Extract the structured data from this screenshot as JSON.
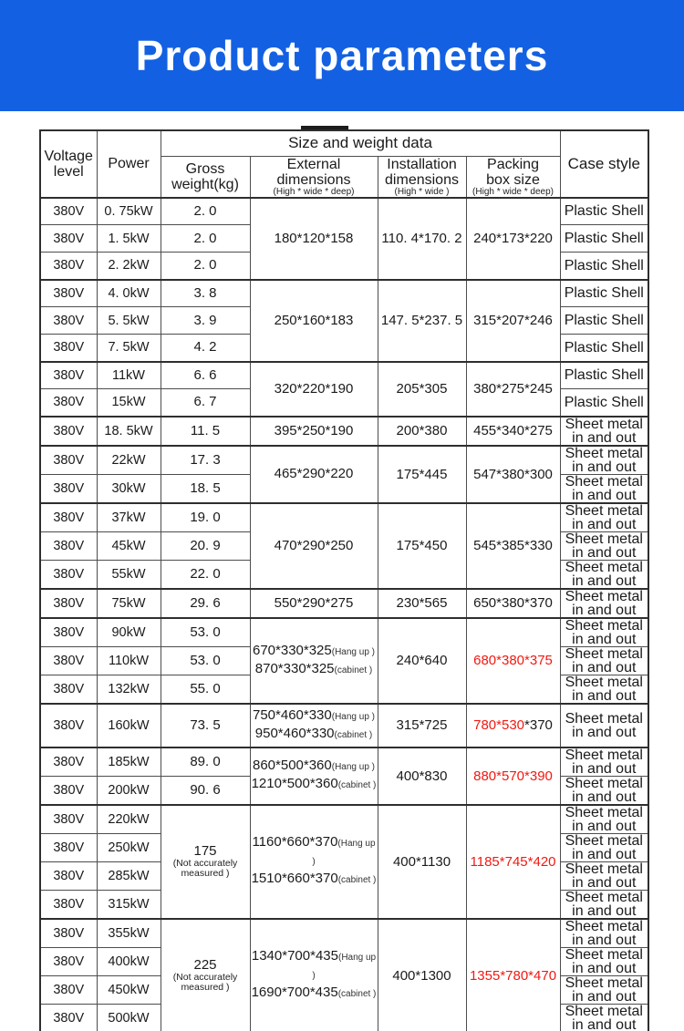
{
  "title": "Product parameters",
  "colors": {
    "banner_blue": "#1361e2",
    "red_text": "#f01911",
    "table_border": "#2e2e2e"
  },
  "table": {
    "header": {
      "voltage_line1": "Voltage",
      "voltage_line2": "level",
      "power": "Power",
      "size_weight": "Size and weight data",
      "gross_line1": "Gross",
      "gross_line2": "weight(kg)",
      "external_line1": "External",
      "external_line2": "dimensions",
      "external_note": "(High * wide * deep)",
      "install_line1": "Installation",
      "install_line2": "dimensions",
      "install_note": "(High * wide )",
      "packing_line1": "Packing",
      "packing_line2": "box size",
      "packing_note": "(High * wide * deep)",
      "case_style": "Case style"
    },
    "rows": [
      {
        "group_start": true,
        "voltage": "380V",
        "power": "0. 75kW",
        "weight": {
          "text": "2. 0"
        },
        "external": {
          "span": 3,
          "lines": [
            {
              "dims": "180*120*158"
            }
          ]
        },
        "installation": {
          "span": 3,
          "text": "110. 4*170. 2"
        },
        "packing": {
          "span": 3,
          "parts": [
            {
              "text": "240*173*220"
            }
          ]
        },
        "case_style": [
          "Plastic Shell"
        ]
      },
      {
        "voltage": "380V",
        "power": "1. 5kW",
        "weight": {
          "text": "2. 0"
        },
        "case_style": [
          "Plastic Shell"
        ]
      },
      {
        "voltage": "380V",
        "power": "2. 2kW",
        "weight": {
          "text": "2. 0"
        },
        "case_style": [
          "Plastic Shell"
        ]
      },
      {
        "group_start": true,
        "voltage": "380V",
        "power": "4. 0kW",
        "weight": {
          "text": "3. 8"
        },
        "external": {
          "span": 3,
          "lines": [
            {
              "dims": "250*160*183"
            }
          ]
        },
        "installation": {
          "span": 3,
          "text": "147. 5*237. 5"
        },
        "packing": {
          "span": 3,
          "parts": [
            {
              "text": "315*207*246"
            }
          ]
        },
        "case_style": [
          "Plastic Shell"
        ]
      },
      {
        "voltage": "380V",
        "power": "5. 5kW",
        "weight": {
          "text": "3. 9"
        },
        "case_style": [
          "Plastic Shell"
        ]
      },
      {
        "voltage": "380V",
        "power": "7. 5kW",
        "weight": {
          "text": "4. 2"
        },
        "case_style": [
          "Plastic Shell"
        ]
      },
      {
        "group_start": true,
        "voltage": "380V",
        "power": "11kW",
        "weight": {
          "text": "6. 6"
        },
        "external": {
          "span": 2,
          "lines": [
            {
              "dims": "320*220*190"
            }
          ]
        },
        "installation": {
          "span": 2,
          "text": "205*305"
        },
        "packing": {
          "span": 2,
          "parts": [
            {
              "text": "380*275*245"
            }
          ]
        },
        "case_style": [
          "Plastic Shell"
        ]
      },
      {
        "voltage": "380V",
        "power": "15kW",
        "weight": {
          "text": "6. 7"
        },
        "case_style": [
          "Plastic Shell"
        ]
      },
      {
        "group_start": true,
        "voltage": "380V",
        "power": "18. 5kW",
        "weight": {
          "text": "11. 5"
        },
        "external": {
          "lines": [
            {
              "dims": "395*250*190"
            }
          ]
        },
        "installation": {
          "text": "200*380"
        },
        "packing": {
          "parts": [
            {
              "text": "455*340*275"
            }
          ]
        },
        "case_style": [
          "Sheet metal",
          "in and out"
        ]
      },
      {
        "group_start": true,
        "voltage": "380V",
        "power": "22kW",
        "weight": {
          "text": "17. 3"
        },
        "external": {
          "span": 2,
          "lines": [
            {
              "dims": "465*290*220"
            }
          ]
        },
        "installation": {
          "span": 2,
          "text": "175*445"
        },
        "packing": {
          "span": 2,
          "parts": [
            {
              "text": "547*380*300"
            }
          ]
        },
        "case_style": [
          "Sheet metal",
          "in and out"
        ]
      },
      {
        "voltage": "380V",
        "power": "30kW",
        "weight": {
          "text": "18. 5"
        },
        "case_style": [
          "Sheet metal",
          "in and out"
        ]
      },
      {
        "group_start": true,
        "voltage": "380V",
        "power": "37kW",
        "weight": {
          "text": "19. 0"
        },
        "external": {
          "span": 3,
          "lines": [
            {
              "dims": "470*290*250"
            }
          ]
        },
        "installation": {
          "span": 3,
          "text": "175*450"
        },
        "packing": {
          "span": 3,
          "parts": [
            {
              "text": "545*385*330"
            }
          ]
        },
        "case_style": [
          "Sheet metal",
          "in and out"
        ]
      },
      {
        "voltage": "380V",
        "power": "45kW",
        "weight": {
          "text": "20. 9"
        },
        "case_style": [
          "Sheet metal",
          "in and out"
        ]
      },
      {
        "voltage": "380V",
        "power": "55kW",
        "weight": {
          "text": "22. 0"
        },
        "case_style": [
          "Sheet metal",
          "in and out"
        ]
      },
      {
        "group_start": true,
        "voltage": "380V",
        "power": "75kW",
        "weight": {
          "text": "29. 6"
        },
        "external": {
          "lines": [
            {
              "dims": "550*290*275"
            }
          ]
        },
        "installation": {
          "text": "230*565"
        },
        "packing": {
          "parts": [
            {
              "text": "650*380*370"
            }
          ]
        },
        "case_style": [
          "Sheet metal",
          "in and out"
        ]
      },
      {
        "group_start": true,
        "voltage": "380V",
        "power": "90kW",
        "weight": {
          "text": "53. 0"
        },
        "external": {
          "span": 3,
          "lines": [
            {
              "dims": "670*330*325",
              "label": "(Hang up )"
            },
            {
              "dims": "870*330*325",
              "label": "(cabinet )"
            }
          ]
        },
        "installation": {
          "span": 3,
          "text": "240*640"
        },
        "packing": {
          "span": 3,
          "parts": [
            {
              "text": "680*380*375",
              "red": true
            }
          ]
        },
        "case_style": [
          "Sheet metal",
          "in and out"
        ]
      },
      {
        "voltage": "380V",
        "power": "110kW",
        "weight": {
          "text": "53. 0"
        },
        "case_style": [
          "Sheet metal",
          "in and out"
        ]
      },
      {
        "voltage": "380V",
        "power": "132kW",
        "weight": {
          "text": "55. 0"
        },
        "case_style": [
          "Sheet metal",
          "in and out"
        ]
      },
      {
        "group_start": true,
        "tall": true,
        "voltage": "380V",
        "power": "160kW",
        "weight": {
          "text": "73. 5"
        },
        "external": {
          "lines": [
            {
              "dims": "750*460*330",
              "label": "(Hang up )"
            },
            {
              "dims": "950*460*330",
              "label": "(cabinet )"
            }
          ]
        },
        "installation": {
          "text": "315*725"
        },
        "packing": {
          "parts": [
            {
              "text": "780*530",
              "red": true
            },
            {
              "text": "*370"
            }
          ]
        },
        "case_style": [
          "Sheet metal",
          "in and out"
        ]
      },
      {
        "group_start": true,
        "voltage": "380V",
        "power": "185kW",
        "weight": {
          "text": "89. 0"
        },
        "external": {
          "span": 2,
          "lines": [
            {
              "dims": "860*500*360",
              "label": "(Hang up )"
            },
            {
              "dims": "1210*500*360",
              "label": "(cabinet )"
            }
          ]
        },
        "installation": {
          "span": 2,
          "text": "400*830"
        },
        "packing": {
          "span": 2,
          "parts": [
            {
              "text": "880*570*390",
              "red": true
            }
          ]
        },
        "case_style": [
          "Sheet metal",
          "in and out"
        ]
      },
      {
        "voltage": "380V",
        "power": "200kW",
        "weight": {
          "text": "90. 6"
        },
        "case_style": [
          "Sheet metal",
          "in and out"
        ]
      },
      {
        "group_start": true,
        "voltage": "380V",
        "power": "220kW",
        "weight": {
          "span": 4,
          "text": "175",
          "note": "(Not accurately measured )"
        },
        "external": {
          "span": 4,
          "lines": [
            {
              "dims": "1160*660*370",
              "label": "(Hang up )"
            },
            {
              "dims": "1510*660*370",
              "label": "(cabinet )"
            }
          ]
        },
        "installation": {
          "span": 4,
          "text": "400*1130"
        },
        "packing": {
          "span": 4,
          "parts": [
            {
              "text": "1185*745*420",
              "red": true
            }
          ]
        },
        "case_style": [
          "Sheet metal",
          "in and out"
        ]
      },
      {
        "voltage": "380V",
        "power": "250kW",
        "case_style": [
          "Sheet metal",
          "in and out"
        ]
      },
      {
        "voltage": "380V",
        "power": "285kW",
        "case_style": [
          "Sheet metal",
          "in and out"
        ]
      },
      {
        "voltage": "380V",
        "power": "315kW",
        "case_style": [
          "Sheet metal",
          "in and out"
        ]
      },
      {
        "group_start": true,
        "voltage": "380V",
        "power": "355kW",
        "weight": {
          "span": 4,
          "text": "225",
          "note": "(Not accurately measured )"
        },
        "external": {
          "span": 4,
          "lines": [
            {
              "dims": "1340*700*435",
              "label": "(Hang up )"
            },
            {
              "dims": "1690*700*435",
              "label": "(cabinet )"
            }
          ]
        },
        "installation": {
          "span": 4,
          "text": "400*1300"
        },
        "packing": {
          "span": 4,
          "parts": [
            {
              "text": "1355*780*470",
              "red": true
            }
          ]
        },
        "case_style": [
          "Sheet metal",
          "in and out"
        ]
      },
      {
        "voltage": "380V",
        "power": "400kW",
        "case_style": [
          "Sheet metal",
          "in and out"
        ]
      },
      {
        "voltage": "380V",
        "power": "450kW",
        "case_style": [
          "Sheet metal",
          "in and out"
        ]
      },
      {
        "voltage": "380V",
        "power": "500kW",
        "case_style": [
          "Sheet metal",
          "in and out"
        ]
      }
    ]
  }
}
